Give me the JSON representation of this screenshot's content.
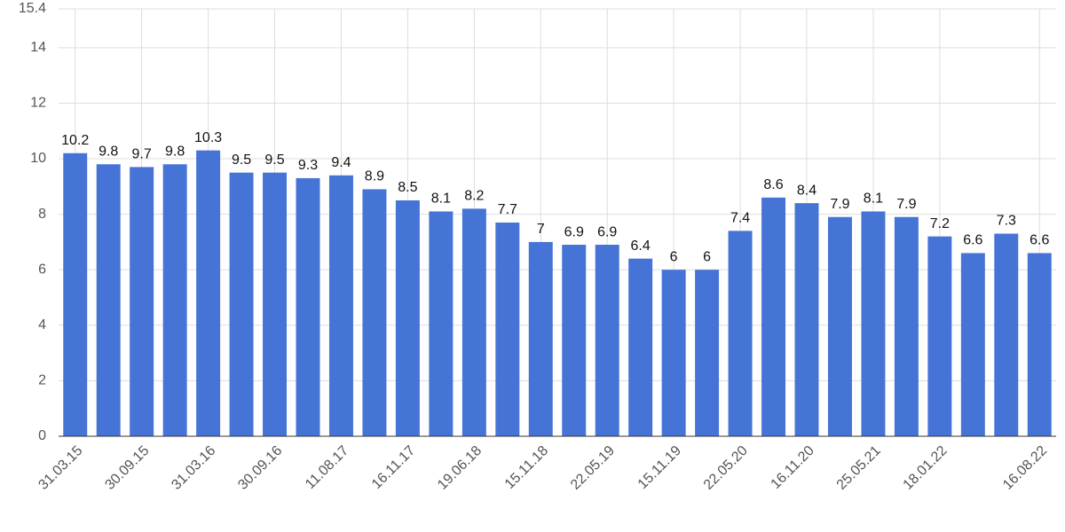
{
  "chart_data": {
    "type": "bar",
    "categories": [
      "31.03.15",
      null,
      "30.09.15",
      null,
      "31.03.16",
      null,
      "30.09.16",
      null,
      "11.08.17",
      null,
      "16.11.17",
      null,
      "19.06.18",
      null,
      "15.11.18",
      null,
      "22.05.19",
      null,
      "15.11.19",
      null,
      "22.05.20",
      null,
      "16.11.20",
      null,
      "25.05.21",
      null,
      "18.01.22",
      null,
      null,
      "16.08.22"
    ],
    "values": [
      10.2,
      9.8,
      9.7,
      9.8,
      10.3,
      9.5,
      9.5,
      9.3,
      9.4,
      8.9,
      8.5,
      8.1,
      8.2,
      7.7,
      7,
      6.9,
      6.9,
      6.4,
      6,
      6,
      7.4,
      8.6,
      8.4,
      7.9,
      8.1,
      7.9,
      7.2,
      6.6,
      7.3,
      6.6
    ],
    "color": "#4674d6",
    "ylim": [
      0,
      15.4
    ],
    "yticks": [
      0,
      2,
      4,
      6,
      8,
      10,
      12,
      14,
      15.4
    ],
    "grid": true
  }
}
